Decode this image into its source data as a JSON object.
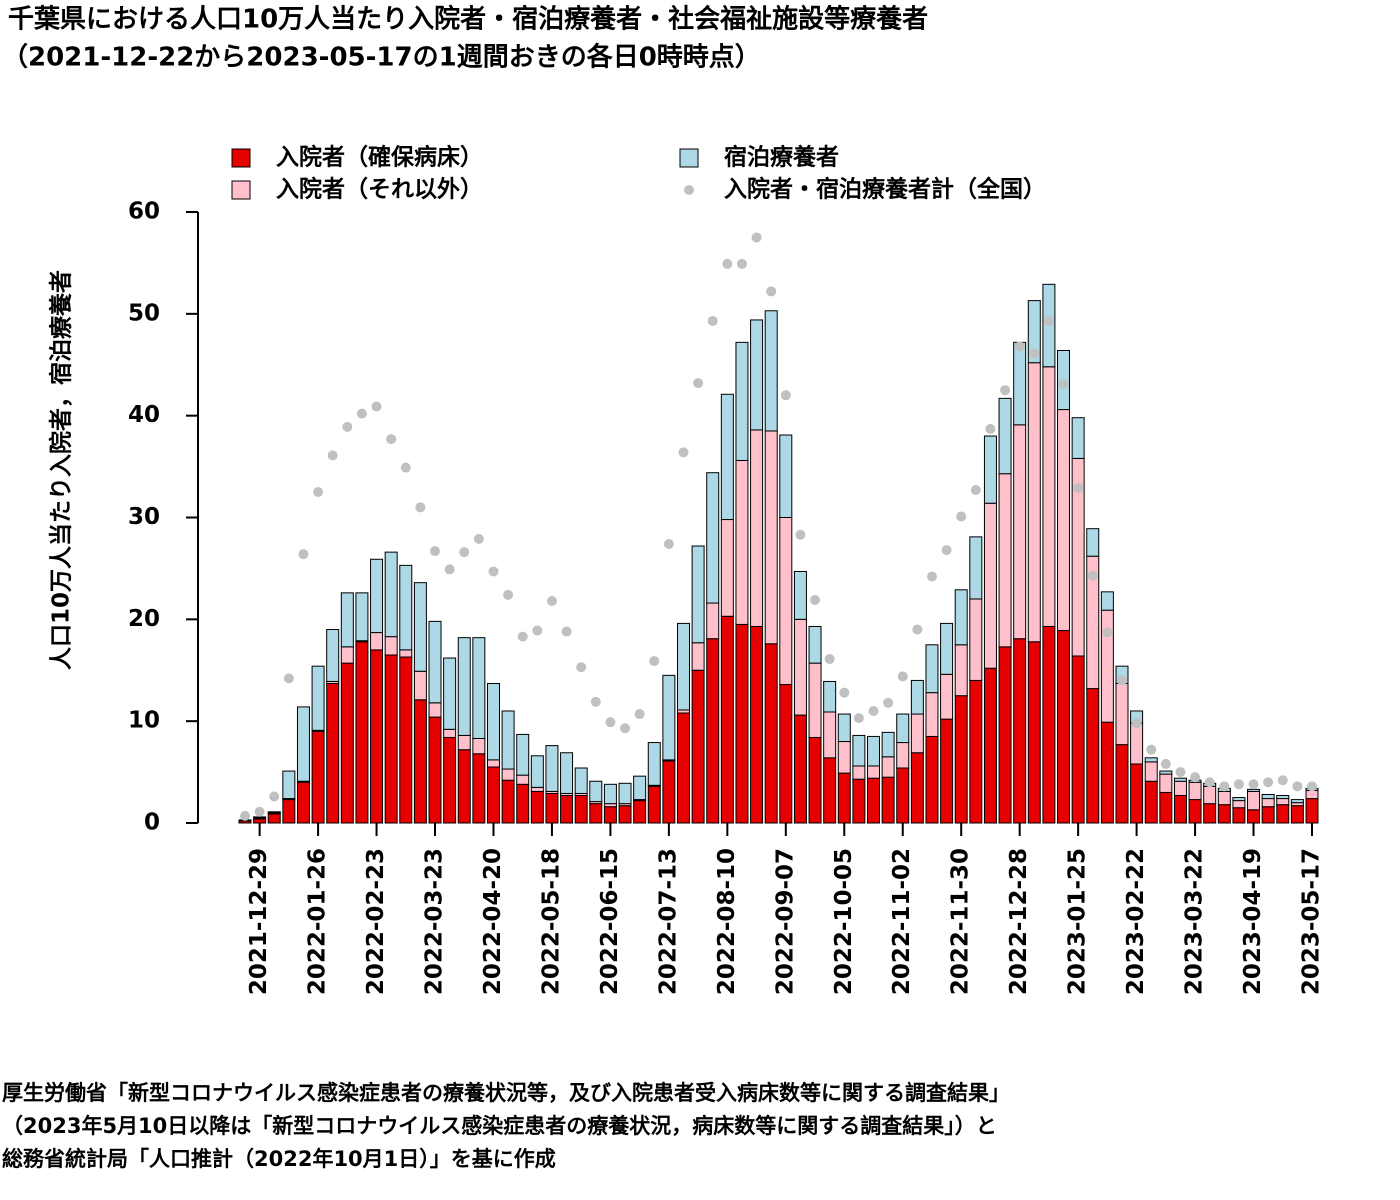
{
  "chart_data": {
    "type": "bar",
    "title": "千葉県における人口10万人当たり入院者・宿泊療養者・社会福祉施設等療養者",
    "subtitle": "（2021-12-22から2023-05-17の1週間おきの各日0時時点）",
    "ylabel": "人口10万人当たり入院者，宿泊療養者",
    "footnote": [
      "厚生労働省「新型コロナウイルス感染症患者の療養状況等，及び入院患者受入病床数等に関する調査結果」",
      "（2023年5月10日以降は「新型コロナウイルス感染症患者の療養状況，病床数等に関する調査結果」）と",
      "総務省統計局「人口推計（2022年10月1日）」を基に作成"
    ],
    "categories": [
      null,
      "2021-12-29",
      null,
      null,
      null,
      "2022-01-26",
      null,
      null,
      null,
      "2022-02-23",
      null,
      null,
      null,
      "2022-03-23",
      null,
      null,
      null,
      "2022-04-20",
      null,
      null,
      null,
      "2022-05-18",
      null,
      null,
      null,
      "2022-06-15",
      null,
      null,
      null,
      "2022-07-13",
      null,
      null,
      null,
      "2022-08-10",
      null,
      null,
      null,
      "2022-09-07",
      null,
      null,
      null,
      "2022-10-05",
      null,
      null,
      null,
      "2022-11-02",
      null,
      null,
      null,
      "2022-11-30",
      null,
      null,
      null,
      "2022-12-28",
      null,
      null,
      null,
      "2023-01-25",
      null,
      null,
      null,
      "2023-02-22",
      null,
      null,
      null,
      "2023-03-22",
      null,
      null,
      null,
      "2023-04-19",
      null,
      null,
      null,
      "2023-05-17"
    ],
    "ylim": [
      0,
      60
    ],
    "yticks": [
      0,
      10,
      20,
      30,
      40,
      50,
      60
    ],
    "series": [
      {
        "name": "入院者（確保病床）",
        "color": "#e60000",
        "stack": true,
        "values": [
          0.2,
          0.4,
          0.9,
          2.3,
          4.0,
          9.0,
          13.7,
          15.7,
          17.8,
          17.0,
          16.5,
          16.3,
          12.1,
          10.4,
          8.4,
          7.2,
          6.8,
          5.5,
          4.2,
          3.8,
          3.1,
          2.9,
          2.7,
          2.7,
          1.9,
          1.6,
          1.7,
          2.2,
          3.6,
          6.1,
          10.8,
          15.0,
          18.1,
          20.3,
          19.5,
          19.3,
          17.6,
          13.6,
          10.6,
          8.4,
          6.4,
          4.9,
          4.3,
          4.4,
          4.5,
          5.4,
          6.9,
          8.5,
          10.2,
          12.5,
          14.0,
          15.2,
          17.3,
          18.1,
          17.8,
          19.3,
          18.9,
          16.4,
          13.2,
          9.9,
          7.7,
          5.8,
          4.1,
          3.0,
          2.7,
          2.3,
          1.9,
          1.8,
          1.5,
          1.3,
          1.6,
          1.8,
          1.7,
          2.4
        ]
      },
      {
        "name": "入院者（それ以外）",
        "color": "#ffc0cb",
        "stack": true,
        "values": [
          0,
          0.1,
          0.1,
          0.1,
          0.1,
          0.1,
          0.2,
          1.6,
          0.1,
          1.7,
          1.8,
          0.7,
          2.8,
          1.4,
          0.8,
          1.4,
          1.5,
          0.7,
          1.1,
          0.9,
          0.4,
          0.2,
          0.2,
          0.2,
          0.2,
          0.3,
          0.2,
          0.1,
          0.1,
          0.1,
          0.3,
          2.7,
          3.5,
          9.5,
          16.1,
          19.3,
          20.9,
          16.4,
          9.4,
          7.3,
          4.5,
          3.1,
          1.3,
          1.2,
          2.0,
          2.5,
          3.8,
          4.3,
          4.4,
          5.0,
          8.0,
          16.2,
          17.0,
          21.0,
          27.4,
          25.5,
          21.7,
          19.4,
          13.0,
          11.0,
          6.0,
          4.0,
          1.9,
          1.8,
          1.4,
          1.7,
          1.7,
          1.3,
          0.7,
          1.8,
          0.8,
          0.6,
          0.3,
          0.8
        ]
      },
      {
        "name": "宿泊療養者",
        "color": "#add8e6",
        "stack": true,
        "values": [
          0.1,
          0.1,
          0.1,
          2.7,
          7.3,
          6.3,
          5.1,
          5.3,
          4.7,
          7.2,
          8.3,
          8.3,
          8.7,
          8.0,
          7.0,
          9.6,
          9.9,
          7.5,
          5.7,
          4.0,
          3.1,
          4.5,
          4.0,
          2.5,
          2.0,
          1.9,
          2.0,
          2.3,
          4.2,
          8.3,
          8.5,
          9.5,
          12.8,
          12.3,
          11.6,
          10.8,
          11.8,
          8.1,
          4.7,
          3.6,
          3.0,
          2.7,
          3.0,
          2.9,
          2.4,
          2.8,
          3.3,
          4.7,
          5.0,
          5.4,
          6.1,
          6.6,
          7.4,
          8.1,
          6.1,
          8.1,
          5.8,
          4.0,
          2.7,
          1.8,
          1.7,
          1.2,
          0.4,
          0.3,
          0.3,
          0.2,
          0.3,
          0.3,
          0.3,
          0.2,
          0.4,
          0.3,
          0.3,
          0.2
        ]
      },
      {
        "name": "入院者・宿泊療養者計（全国）",
        "color": "#c0c0c0",
        "stack": false,
        "values": [
          0.7,
          1.1,
          2.6,
          14.2,
          26.4,
          32.5,
          36.1,
          38.9,
          40.2,
          40.9,
          37.7,
          34.9,
          31.0,
          26.7,
          24.9,
          26.6,
          27.9,
          24.7,
          22.4,
          18.3,
          18.9,
          21.8,
          18.8,
          15.3,
          11.9,
          9.9,
          9.3,
          10.7,
          15.9,
          27.4,
          36.4,
          43.2,
          49.3,
          54.9,
          54.9,
          57.5,
          52.2,
          42.0,
          28.3,
          21.9,
          16.1,
          12.8,
          10.3,
          11.0,
          11.8,
          14.4,
          19.0,
          24.2,
          26.8,
          30.1,
          32.7,
          38.7,
          42.5,
          46.8,
          46.1,
          49.3,
          43.1,
          32.9,
          24.3,
          18.7,
          14.0,
          9.8,
          7.2,
          5.8,
          5.0,
          4.5,
          4.0,
          3.6,
          3.8,
          3.8,
          4.0,
          4.2,
          3.6,
          3.6
        ]
      }
    ]
  }
}
